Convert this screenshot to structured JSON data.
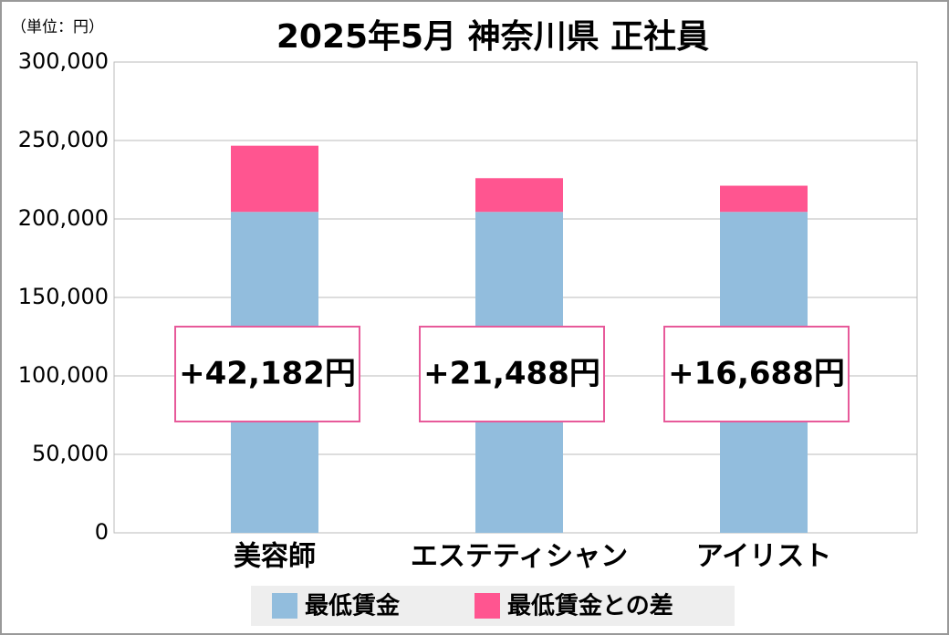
{
  "chart_data": {
    "type": "stacked_bar",
    "title": "2025年5月 神奈川県 正社員",
    "unit_label": "（単位：円）",
    "categories": [
      "美容師",
      "エステティシャン",
      "アイリスト"
    ],
    "series": [
      {
        "name": "最低賃金",
        "color": "#92bddd",
        "values": [
          204512,
          204512,
          204512
        ]
      },
      {
        "name": "最低賃金との差",
        "color": "#ff5590",
        "values": [
          42182,
          21488,
          16688
        ],
        "value_labels": [
          "+42,182円",
          "+21,488円",
          "+16,688円"
        ]
      }
    ],
    "ylim": [
      0,
      300000
    ],
    "yticks": [
      0,
      {
        "value": 50000,
        "label": "50,000"
      },
      {
        "value": 100000,
        "label": "100,000"
      },
      {
        "value": 150000,
        "label": "150,000"
      },
      {
        "value": 200000,
        "label": "200,000"
      },
      {
        "value": 250000,
        "label": "250,000"
      },
      {
        "value": 300000,
        "label": "300,000"
      }
    ],
    "grid": true,
    "legend": "bottom"
  }
}
